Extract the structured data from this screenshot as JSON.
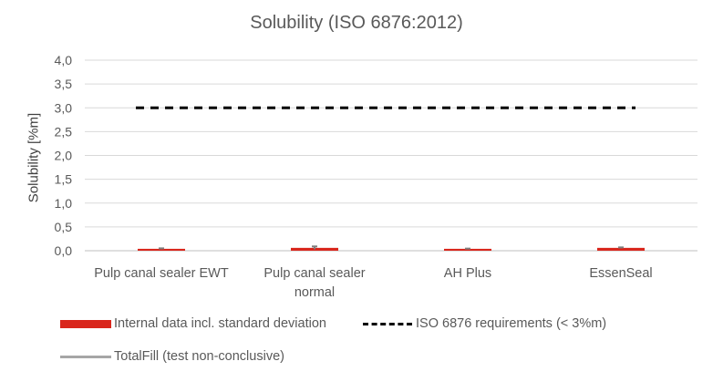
{
  "chart_data": {
    "type": "bar",
    "title": "Solubility (ISO 6876:2012)",
    "ylabel": "Solubility [%m]",
    "xlabel": "",
    "ylim": [
      0,
      4.0
    ],
    "yticks": [
      "0,0",
      "0,5",
      "1,0",
      "1,5",
      "2,0",
      "2,5",
      "3,0",
      "3,5",
      "4,0"
    ],
    "ytick_values": [
      0,
      0.5,
      1.0,
      1.5,
      2.0,
      2.5,
      3.0,
      3.5,
      4.0
    ],
    "grid": true,
    "categories": [
      [
        "Pulp canal sealer EWT"
      ],
      [
        "Pulp canal sealer",
        "normal"
      ],
      [
        "AH Plus"
      ],
      [
        "EssenSeal"
      ]
    ],
    "series": [
      {
        "name": "Internal data incl. standard deviation",
        "color": "#d9261c",
        "values": [
          0.04,
          0.06,
          0.04,
          0.06
        ],
        "errors": [
          0.01,
          0.03,
          0.005,
          0.01
        ]
      }
    ],
    "reference_line": {
      "name": "ISO 6876 requirements (< 3%m)",
      "value": 3.0,
      "color": "#000000",
      "style": "dashed"
    },
    "legend_extra": {
      "name": "TotalFill (test non-conclusive)",
      "color": "#a6a6a6"
    },
    "legend_position": "bottom-left"
  }
}
